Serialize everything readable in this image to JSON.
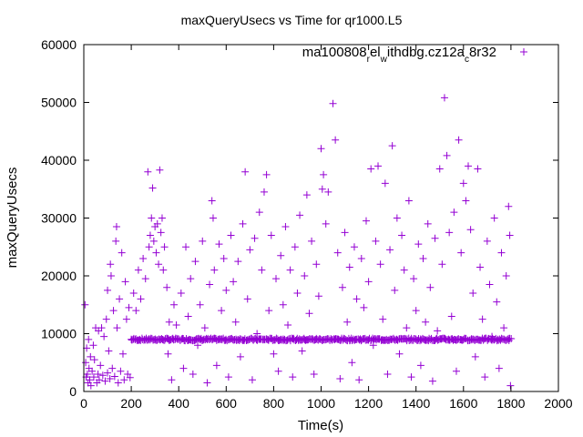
{
  "chart_data": {
    "type": "scatter",
    "title": "maxQueryUsecs vs Time for qr1000.L5",
    "xlabel": "Time(s)",
    "ylabel": "maxQueryUsecs",
    "xlim": [
      0,
      2000
    ],
    "ylim": [
      0,
      60000
    ],
    "xticks": [
      "0",
      "200",
      "400",
      "600",
      "800",
      "1000",
      "1200",
      "1400",
      "1600",
      "1800",
      "2000"
    ],
    "yticks": [
      "0",
      "10000",
      "20000",
      "30000",
      "40000",
      "50000",
      "60000"
    ],
    "grid": false,
    "legend_placement": "top-right",
    "legend_parts": [
      {
        "text": "ma100808",
        "sub": false
      },
      {
        "text": "r",
        "sub": true
      },
      {
        "text": "el",
        "sub": false
      },
      {
        "text": "w",
        "sub": true
      },
      {
        "text": "ithdbg.cz12a",
        "sub": false
      },
      {
        "text": "c",
        "sub": true
      },
      {
        "text": "8r32",
        "sub": false
      }
    ],
    "series": [
      {
        "name": "ma100808_rel_withdbg.cz12a_c8r32",
        "color": "#9400d3",
        "marker": "+",
        "band": {
          "x_start": 200,
          "x_end": 1800,
          "x_step": 4,
          "y": 9000
        },
        "points": [
          [
            5,
            15000
          ],
          [
            8,
            5000
          ],
          [
            10,
            2500
          ],
          [
            12,
            7500
          ],
          [
            15,
            3000
          ],
          [
            18,
            1500
          ],
          [
            20,
            9000
          ],
          [
            22,
            4000
          ],
          [
            25,
            2000
          ],
          [
            28,
            6000
          ],
          [
            30,
            1000
          ],
          [
            35,
            3500
          ],
          [
            40,
            8000
          ],
          [
            42,
            2500
          ],
          [
            45,
            5500
          ],
          [
            50,
            11000
          ],
          [
            55,
            1500
          ],
          [
            60,
            3000
          ],
          [
            62,
            10500
          ],
          [
            65,
            2000
          ],
          [
            70,
            4500
          ],
          [
            75,
            11000
          ],
          [
            80,
            2800
          ],
          [
            85,
            9500
          ],
          [
            90,
            1800
          ],
          [
            95,
            12500
          ],
          [
            100,
            3200
          ],
          [
            100,
            17500
          ],
          [
            105,
            7000
          ],
          [
            110,
            2200
          ],
          [
            112,
            22000
          ],
          [
            115,
            20000
          ],
          [
            120,
            4000
          ],
          [
            125,
            14000
          ],
          [
            130,
            2600
          ],
          [
            135,
            26000
          ],
          [
            138,
            28500
          ],
          [
            140,
            11000
          ],
          [
            145,
            1500
          ],
          [
            150,
            16000
          ],
          [
            155,
            3500
          ],
          [
            160,
            24000
          ],
          [
            165,
            6500
          ],
          [
            170,
            2000
          ],
          [
            175,
            19000
          ],
          [
            180,
            12500
          ],
          [
            185,
            3000
          ],
          [
            190,
            14500
          ],
          [
            195,
            2400
          ],
          [
            210,
            17000
          ],
          [
            220,
            14000
          ],
          [
            230,
            21000
          ],
          [
            240,
            16000
          ],
          [
            250,
            23000
          ],
          [
            260,
            19500
          ],
          [
            270,
            38000
          ],
          [
            275,
            25000
          ],
          [
            280,
            27000
          ],
          [
            285,
            30000
          ],
          [
            290,
            35200
          ],
          [
            295,
            26000
          ],
          [
            300,
            28500
          ],
          [
            305,
            24000
          ],
          [
            310,
            29000
          ],
          [
            315,
            22000
          ],
          [
            320,
            38300
          ],
          [
            325,
            27500
          ],
          [
            330,
            30000
          ],
          [
            335,
            21000
          ],
          [
            340,
            25000
          ],
          [
            350,
            18000
          ],
          [
            355,
            6500
          ],
          [
            360,
            12000
          ],
          [
            370,
            2000
          ],
          [
            380,
            15000
          ],
          [
            390,
            11500
          ],
          [
            410,
            17000
          ],
          [
            420,
            4000
          ],
          [
            430,
            25000
          ],
          [
            440,
            13000
          ],
          [
            450,
            19500
          ],
          [
            460,
            3000
          ],
          [
            470,
            22500
          ],
          [
            480,
            8000
          ],
          [
            490,
            15000
          ],
          [
            500,
            26000
          ],
          [
            510,
            11000
          ],
          [
            520,
            1500
          ],
          [
            530,
            18500
          ],
          [
            540,
            33000
          ],
          [
            545,
            30000
          ],
          [
            550,
            21000
          ],
          [
            560,
            4500
          ],
          [
            570,
            25500
          ],
          [
            580,
            14000
          ],
          [
            590,
            23000
          ],
          [
            600,
            17500
          ],
          [
            610,
            2500
          ],
          [
            620,
            27000
          ],
          [
            630,
            19000
          ],
          [
            640,
            12000
          ],
          [
            650,
            22500
          ],
          [
            660,
            6000
          ],
          [
            670,
            29000
          ],
          [
            680,
            38000
          ],
          [
            690,
            16000
          ],
          [
            700,
            24500
          ],
          [
            710,
            2000
          ],
          [
            720,
            26500
          ],
          [
            730,
            10000
          ],
          [
            740,
            31000
          ],
          [
            750,
            21000
          ],
          [
            760,
            34500
          ],
          [
            770,
            37500
          ],
          [
            780,
            14000
          ],
          [
            790,
            27000
          ],
          [
            800,
            6500
          ],
          [
            810,
            19500
          ],
          [
            820,
            3500
          ],
          [
            830,
            23500
          ],
          [
            840,
            15000
          ],
          [
            850,
            28500
          ],
          [
            860,
            11500
          ],
          [
            870,
            21000
          ],
          [
            880,
            2500
          ],
          [
            890,
            25000
          ],
          [
            900,
            17000
          ],
          [
            910,
            30500
          ],
          [
            920,
            7000
          ],
          [
            930,
            20000
          ],
          [
            940,
            34000
          ],
          [
            950,
            13500
          ],
          [
            960,
            26000
          ],
          [
            970,
            3000
          ],
          [
            980,
            22000
          ],
          [
            990,
            16500
          ],
          [
            1000,
            42000
          ],
          [
            1005,
            35000
          ],
          [
            1010,
            37500
          ],
          [
            1020,
            29000
          ],
          [
            1030,
            34500
          ],
          [
            1050,
            49800
          ],
          [
            1060,
            43500
          ],
          [
            1070,
            24000
          ],
          [
            1080,
            2200
          ],
          [
            1090,
            18000
          ],
          [
            1100,
            27500
          ],
          [
            1110,
            12000
          ],
          [
            1120,
            21500
          ],
          [
            1130,
            5000
          ],
          [
            1140,
            25000
          ],
          [
            1150,
            16000
          ],
          [
            1160,
            2000
          ],
          [
            1170,
            23000
          ],
          [
            1180,
            14500
          ],
          [
            1190,
            29500
          ],
          [
            1200,
            19000
          ],
          [
            1210,
            38500
          ],
          [
            1220,
            8000
          ],
          [
            1230,
            26000
          ],
          [
            1240,
            39000
          ],
          [
            1250,
            22000
          ],
          [
            1260,
            12500
          ],
          [
            1270,
            36000
          ],
          [
            1280,
            3000
          ],
          [
            1290,
            24500
          ],
          [
            1300,
            42500
          ],
          [
            1310,
            17500
          ],
          [
            1320,
            30000
          ],
          [
            1330,
            6500
          ],
          [
            1340,
            27000
          ],
          [
            1350,
            21000
          ],
          [
            1360,
            11000
          ],
          [
            1370,
            33000
          ],
          [
            1380,
            2500
          ],
          [
            1390,
            19500
          ],
          [
            1400,
            14000
          ],
          [
            1410,
            25500
          ],
          [
            1420,
            4500
          ],
          [
            1430,
            23000
          ],
          [
            1440,
            12000
          ],
          [
            1450,
            29000
          ],
          [
            1460,
            18000
          ],
          [
            1470,
            1800
          ],
          [
            1480,
            26500
          ],
          [
            1490,
            10500
          ],
          [
            1500,
            38500
          ],
          [
            1510,
            22000
          ],
          [
            1520,
            50800
          ],
          [
            1530,
            40800
          ],
          [
            1540,
            27500
          ],
          [
            1550,
            13000
          ],
          [
            1560,
            31000
          ],
          [
            1570,
            3500
          ],
          [
            1580,
            43500
          ],
          [
            1590,
            24000
          ],
          [
            1600,
            36000
          ],
          [
            1610,
            33000
          ],
          [
            1620,
            39000
          ],
          [
            1630,
            28000
          ],
          [
            1640,
            17000
          ],
          [
            1650,
            6000
          ],
          [
            1660,
            38500
          ],
          [
            1670,
            21500
          ],
          [
            1680,
            12500
          ],
          [
            1690,
            2500
          ],
          [
            1700,
            26000
          ],
          [
            1710,
            18500
          ],
          [
            1720,
            9500
          ],
          [
            1730,
            30000
          ],
          [
            1740,
            15500
          ],
          [
            1750,
            4000
          ],
          [
            1760,
            24000
          ],
          [
            1770,
            11000
          ],
          [
            1780,
            20000
          ],
          [
            1790,
            32000
          ],
          [
            1795,
            27000
          ],
          [
            1798,
            1000
          ]
        ]
      }
    ]
  }
}
